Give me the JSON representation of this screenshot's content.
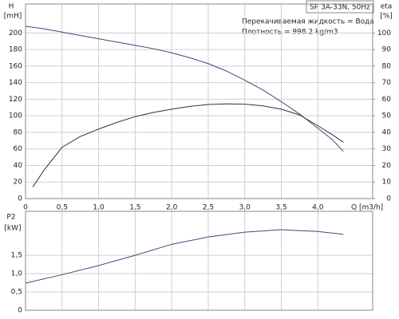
{
  "chart_data": [
    {
      "type": "line",
      "title": "SP 3A-33N, 50Hz",
      "annotations": [
        "Перекачиваемая жидкость = Вода",
        "Плотность = 998.2 kg/m3"
      ],
      "x_label": "Q [m3/h]",
      "y_label": "H",
      "y_unit": "[mH]",
      "y2_label": "eta",
      "y2_unit": "[%]",
      "x": [
        0,
        0.1,
        0.25,
        0.5,
        0.75,
        1,
        1.25,
        1.5,
        1.75,
        2,
        2.25,
        2.5,
        2.75,
        3,
        3.25,
        3.5,
        3.75,
        4,
        4.2,
        4.35
      ],
      "series": [
        {
          "color": "#3c4a78",
          "values": [
            208,
            207,
            205,
            201,
            197,
            193,
            189,
            185,
            181,
            176,
            170,
            163,
            154,
            143,
            131,
            117,
            102,
            85,
            71,
            57
          ]
        },
        {
          "color": "#333333",
          "axis": "y2",
          "values": [
            null,
            7,
            17,
            31,
            37.5,
            42,
            46,
            49.5,
            52,
            54,
            55.7,
            56.8,
            57.2,
            57,
            56,
            54,
            50.5,
            44,
            38.5,
            34
          ]
        }
      ],
      "xlim": [
        0,
        4.75
      ],
      "xticks": [
        0,
        {
          "value": 0.5,
          "label": "0,5"
        },
        {
          "value": 1,
          "label": "1,0"
        },
        {
          "value": 1.5,
          "label": "1,5"
        },
        {
          "value": 2,
          "label": "2,0"
        },
        {
          "value": 2.5,
          "label": "2,5"
        },
        {
          "value": 3,
          "label": "3,0"
        },
        {
          "value": 3.5,
          "label": "3,5"
        },
        {
          "value": 4,
          "label": "4,0"
        }
      ],
      "ylim": [
        0,
        235
      ],
      "yticks": [
        0,
        20,
        40,
        60,
        80,
        100,
        120,
        140,
        160,
        180,
        200
      ],
      "y2lim": [
        0,
        117.5
      ],
      "y2ticks": [
        0,
        10,
        20,
        30,
        40,
        50,
        60,
        70,
        80,
        90,
        100
      ],
      "grid": true
    },
    {
      "type": "line",
      "y_label": "P2",
      "y_unit": "[kW]",
      "x": [
        0,
        0.5,
        1,
        1.5,
        2,
        2.5,
        3,
        3.5,
        4,
        4.35
      ],
      "series": [
        {
          "color": "#3c4a78",
          "values": [
            0.74,
            0.97,
            1.22,
            1.5,
            1.8,
            2.0,
            2.13,
            2.2,
            2.15,
            2.07
          ]
        }
      ],
      "xlim": [
        0,
        4.75
      ],
      "xticks": [
        0,
        0.5,
        1,
        1.5,
        2,
        2.5,
        3,
        3.5,
        4
      ],
      "ylim": [
        0,
        2.7
      ],
      "yticks": [
        0,
        {
          "value": 0.5,
          "label": "0,5"
        },
        {
          "value": 1,
          "label": "1,0"
        },
        {
          "value": 1.5,
          "label": "1,5"
        }
      ],
      "grid": true
    }
  ]
}
